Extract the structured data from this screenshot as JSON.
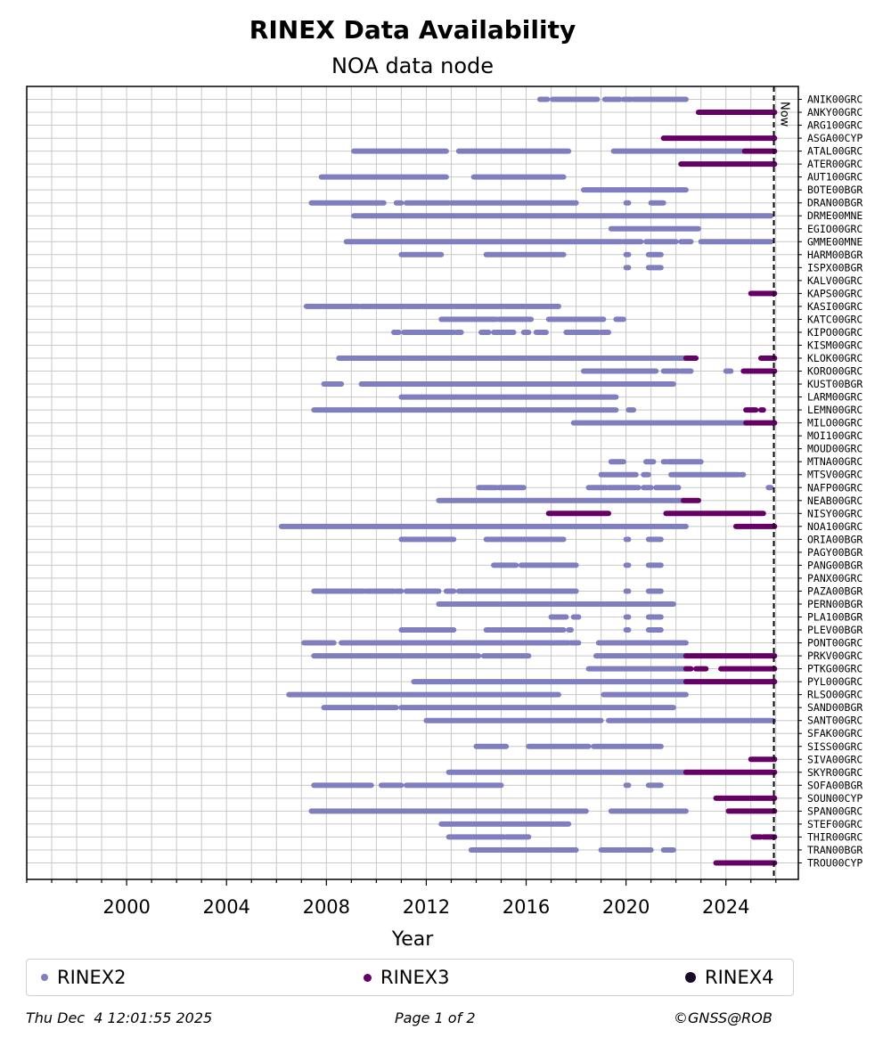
{
  "chart_data": {
    "type": "timeline",
    "title": "RINEX Data Availability",
    "subtitle": "NOA data node",
    "xlabel": "Year",
    "xlim": [
      1996.0,
      2026.9
    ],
    "xticks": [
      "2000",
      "2004",
      "2008",
      "2012",
      "2016",
      "2020",
      "2024"
    ],
    "now_label": "Now",
    "now_year": 2025.92,
    "legend": [
      {
        "key": "r2",
        "label": "RINEX2",
        "color": "#7f7fbf"
      },
      {
        "key": "r3",
        "label": "RINEX3",
        "color": "#660066"
      },
      {
        "key": "r4",
        "label": "RINEX4",
        "color": "#1a0a2a"
      }
    ],
    "stations": [
      {
        "name": "ANIK00GRC",
        "spans": [
          [
            2016.55,
            2016.85,
            "r2"
          ],
          [
            2017.05,
            2018.85,
            "r2"
          ],
          [
            2019.15,
            2019.75,
            "r2"
          ],
          [
            2019.9,
            2020.2,
            "r2"
          ],
          [
            2020.3,
            2022.4,
            "r2"
          ]
        ]
      },
      {
        "name": "ANKY00GRC",
        "spans": [
          [
            2022.9,
            2025.95,
            "r3"
          ]
        ]
      },
      {
        "name": "ARG100GRC",
        "spans": []
      },
      {
        "name": "ASGA00CYP",
        "spans": [
          [
            2021.5,
            2025.95,
            "r3"
          ]
        ]
      },
      {
        "name": "ATAL00GRC",
        "spans": [
          [
            2009.1,
            2012.8,
            "r2"
          ],
          [
            2013.3,
            2017.7,
            "r2"
          ],
          [
            2019.5,
            2024.75,
            "r2"
          ],
          [
            2024.75,
            2025.95,
            "r3"
          ]
        ]
      },
      {
        "name": "ATER00GRC",
        "spans": [
          [
            2022.2,
            2025.95,
            "r3"
          ]
        ]
      },
      {
        "name": "AUT100GRC",
        "spans": [
          [
            2007.8,
            2012.8,
            "r2"
          ],
          [
            2013.9,
            2017.5,
            "r2"
          ]
        ]
      },
      {
        "name": "BOTE00BGR",
        "spans": [
          [
            2018.3,
            2021.9,
            "r2"
          ],
          [
            2022.0,
            2022.4,
            "r2"
          ]
        ]
      },
      {
        "name": "DRAN00BGR",
        "spans": [
          [
            2007.4,
            2010.3,
            "r2"
          ],
          [
            2010.8,
            2011.0,
            "r2"
          ],
          [
            2011.2,
            2012.9,
            "r2"
          ],
          [
            2013.0,
            2018.0,
            "r2"
          ],
          [
            2020.0,
            2020.1,
            "r2"
          ],
          [
            2021.0,
            2021.5,
            "r2"
          ]
        ]
      },
      {
        "name": "DRME00MNE",
        "spans": [
          [
            2009.1,
            2025.8,
            "r2"
          ]
        ]
      },
      {
        "name": "EGIO00GRC",
        "spans": [
          [
            2019.4,
            2022.9,
            "r2"
          ]
        ]
      },
      {
        "name": "GMME00MNE",
        "spans": [
          [
            2008.8,
            2019.8,
            "r2"
          ],
          [
            2019.9,
            2020.6,
            "r2"
          ],
          [
            2020.8,
            2022.0,
            "r2"
          ],
          [
            2022.2,
            2022.6,
            "r2"
          ],
          [
            2023.0,
            2025.8,
            "r2"
          ]
        ]
      },
      {
        "name": "HARM00BGR",
        "spans": [
          [
            2011.0,
            2012.6,
            "r2"
          ],
          [
            2014.4,
            2017.5,
            "r2"
          ],
          [
            2020.0,
            2020.1,
            "r2"
          ],
          [
            2020.9,
            2021.4,
            "r2"
          ]
        ]
      },
      {
        "name": "ISPX00BGR",
        "spans": [
          [
            2020.0,
            2020.1,
            "r2"
          ],
          [
            2020.9,
            2021.4,
            "r2"
          ]
        ]
      },
      {
        "name": "KALV00GRC",
        "spans": []
      },
      {
        "name": "KAPS00GRC",
        "spans": [
          [
            2025.0,
            2025.95,
            "r3"
          ]
        ]
      },
      {
        "name": "KASI00GRC",
        "spans": [
          [
            2007.2,
            2009.3,
            "r2"
          ],
          [
            2009.4,
            2017.3,
            "r2"
          ]
        ]
      },
      {
        "name": "KATC00GRC",
        "spans": [
          [
            2012.6,
            2014.8,
            "r2"
          ],
          [
            2014.9,
            2016.2,
            "r2"
          ],
          [
            2016.9,
            2019.1,
            "r2"
          ],
          [
            2019.6,
            2019.9,
            "r2"
          ]
        ]
      },
      {
        "name": "KIPO00GRC",
        "spans": [
          [
            2010.7,
            2010.9,
            "r2"
          ],
          [
            2011.1,
            2013.1,
            "r2"
          ],
          [
            2013.2,
            2013.4,
            "r2"
          ],
          [
            2014.2,
            2014.5,
            "r2"
          ],
          [
            2014.7,
            2015.5,
            "r2"
          ],
          [
            2015.9,
            2016.1,
            "r2"
          ],
          [
            2016.4,
            2016.8,
            "r2"
          ],
          [
            2017.6,
            2018.9,
            "r2"
          ],
          [
            2019.0,
            2019.3,
            "r2"
          ]
        ]
      },
      {
        "name": "KISM00GRC",
        "spans": []
      },
      {
        "name": "KLOK00GRC",
        "spans": [
          [
            2008.5,
            2022.4,
            "r2"
          ],
          [
            2022.4,
            2022.8,
            "r3"
          ],
          [
            2025.4,
            2025.95,
            "r3"
          ]
        ]
      },
      {
        "name": "KORO00GRC",
        "spans": [
          [
            2018.3,
            2021.2,
            "r2"
          ],
          [
            2021.5,
            2022.1,
            "r2"
          ],
          [
            2022.2,
            2022.6,
            "r2"
          ],
          [
            2024.0,
            2024.2,
            "r2"
          ],
          [
            2024.7,
            2025.95,
            "r3"
          ]
        ]
      },
      {
        "name": "KUST00BGR",
        "spans": [
          [
            2007.9,
            2008.6,
            "r2"
          ],
          [
            2009.4,
            2011.0,
            "r2"
          ],
          [
            2011.0,
            2021.9,
            "r2"
          ]
        ]
      },
      {
        "name": "LARM00GRC",
        "spans": [
          [
            2011.0,
            2019.6,
            "r2"
          ]
        ]
      },
      {
        "name": "LEMN00GRC",
        "spans": [
          [
            2007.5,
            2009.8,
            "r2"
          ],
          [
            2009.8,
            2019.6,
            "r2"
          ],
          [
            2020.1,
            2020.3,
            "r2"
          ],
          [
            2024.8,
            2025.2,
            "r3"
          ],
          [
            2025.4,
            2025.5,
            "r3"
          ]
        ]
      },
      {
        "name": "MILO00GRC",
        "spans": [
          [
            2017.9,
            2024.8,
            "r2"
          ],
          [
            2024.8,
            2025.95,
            "r3"
          ]
        ]
      },
      {
        "name": "MOI100GRC",
        "spans": []
      },
      {
        "name": "MOUD00GRC",
        "spans": []
      },
      {
        "name": "MTNA00GRC",
        "spans": [
          [
            2019.4,
            2019.9,
            "r2"
          ],
          [
            2020.8,
            2021.1,
            "r2"
          ],
          [
            2021.5,
            2021.6,
            "r2"
          ],
          [
            2021.7,
            2023.0,
            "r2"
          ]
        ]
      },
      {
        "name": "MTSV00GRC",
        "spans": [
          [
            2019.0,
            2020.4,
            "r2"
          ],
          [
            2020.7,
            2020.9,
            "r2"
          ],
          [
            2021.8,
            2024.5,
            "r2"
          ],
          [
            2024.6,
            2024.7,
            "r2"
          ]
        ]
      },
      {
        "name": "NAFP00GRC",
        "spans": [
          [
            2014.1,
            2014.8,
            "r2"
          ],
          [
            2014.9,
            2015.9,
            "r2"
          ],
          [
            2018.5,
            2019.2,
            "r2"
          ],
          [
            2019.3,
            2020.5,
            "r2"
          ],
          [
            2020.7,
            2021.0,
            "r2"
          ],
          [
            2021.2,
            2022.1,
            "r2"
          ],
          [
            2025.7,
            2025.8,
            "r2"
          ]
        ]
      },
      {
        "name": "NEAB00GRC",
        "spans": [
          [
            2012.5,
            2022.3,
            "r2"
          ],
          [
            2022.3,
            2022.9,
            "r3"
          ]
        ]
      },
      {
        "name": "NISY00GRC",
        "spans": [
          [
            2016.9,
            2019.3,
            "r3"
          ],
          [
            2021.6,
            2025.5,
            "r3"
          ]
        ]
      },
      {
        "name": "NOA100GRC",
        "spans": [
          [
            2006.2,
            2022.4,
            "r2"
          ],
          [
            2024.4,
            2025.95,
            "r3"
          ]
        ]
      },
      {
        "name": "ORIA00BGR",
        "spans": [
          [
            2011.0,
            2013.1,
            "r2"
          ],
          [
            2014.4,
            2017.5,
            "r2"
          ],
          [
            2020.0,
            2020.1,
            "r2"
          ],
          [
            2020.9,
            2021.4,
            "r2"
          ]
        ]
      },
      {
        "name": "PAGY00BGR",
        "spans": []
      },
      {
        "name": "PANG00BGR",
        "spans": [
          [
            2014.7,
            2015.6,
            "r2"
          ],
          [
            2015.8,
            2018.0,
            "r2"
          ],
          [
            2020.0,
            2020.1,
            "r2"
          ],
          [
            2020.9,
            2021.4,
            "r2"
          ]
        ]
      },
      {
        "name": "PANX00GRC",
        "spans": []
      },
      {
        "name": "PAZA00BGR",
        "spans": [
          [
            2007.5,
            2009.5,
            "r2"
          ],
          [
            2009.6,
            2010.7,
            "r2"
          ],
          [
            2010.8,
            2011.0,
            "r2"
          ],
          [
            2011.2,
            2012.5,
            "r2"
          ],
          [
            2012.8,
            2013.1,
            "r2"
          ],
          [
            2013.3,
            2018.0,
            "r2"
          ],
          [
            2020.0,
            2020.1,
            "r2"
          ],
          [
            2020.9,
            2021.4,
            "r2"
          ]
        ]
      },
      {
        "name": "PERN00BGR",
        "spans": [
          [
            2012.5,
            2021.9,
            "r2"
          ]
        ]
      },
      {
        "name": "PLA100BGR",
        "spans": [
          [
            2017.0,
            2017.6,
            "r2"
          ],
          [
            2017.9,
            2018.1,
            "r2"
          ],
          [
            2020.0,
            2020.1,
            "r2"
          ],
          [
            2020.9,
            2021.4,
            "r2"
          ]
        ]
      },
      {
        "name": "PLEV00BGR",
        "spans": [
          [
            2011.0,
            2013.1,
            "r2"
          ],
          [
            2014.4,
            2017.5,
            "r2"
          ],
          [
            2017.7,
            2017.8,
            "r2"
          ],
          [
            2020.0,
            2020.1,
            "r2"
          ],
          [
            2020.9,
            2021.4,
            "r2"
          ]
        ]
      },
      {
        "name": "PONT00GRC",
        "spans": [
          [
            2007.1,
            2008.3,
            "r2"
          ],
          [
            2008.6,
            2017.7,
            "r2"
          ],
          [
            2017.8,
            2018.1,
            "r2"
          ],
          [
            2018.9,
            2022.4,
            "r2"
          ]
        ]
      },
      {
        "name": "PRKV00GRC",
        "spans": [
          [
            2007.5,
            2009.8,
            "r2"
          ],
          [
            2009.8,
            2014.1,
            "r2"
          ],
          [
            2014.3,
            2016.1,
            "r2"
          ],
          [
            2018.8,
            2022.4,
            "r2"
          ],
          [
            2022.4,
            2025.95,
            "r3"
          ]
        ]
      },
      {
        "name": "PTKG00GRC",
        "spans": [
          [
            2018.5,
            2022.4,
            "r2"
          ],
          [
            2022.4,
            2022.6,
            "r3"
          ],
          [
            2022.8,
            2023.2,
            "r3"
          ],
          [
            2023.8,
            2025.95,
            "r3"
          ]
        ]
      },
      {
        "name": "PYL000GRC",
        "spans": [
          [
            2011.5,
            2022.4,
            "r2"
          ],
          [
            2022.4,
            2025.95,
            "r3"
          ]
        ]
      },
      {
        "name": "RLSO00GRC",
        "spans": [
          [
            2006.5,
            2017.3,
            "r2"
          ],
          [
            2019.1,
            2022.4,
            "r2"
          ]
        ]
      },
      {
        "name": "SAND00BGR",
        "spans": [
          [
            2007.9,
            2009.9,
            "r2"
          ],
          [
            2010.0,
            2010.8,
            "r2"
          ],
          [
            2011.0,
            2021.9,
            "r2"
          ]
        ]
      },
      {
        "name": "SANT00GRC",
        "spans": [
          [
            2012.0,
            2019.0,
            "r2"
          ],
          [
            2019.3,
            2025.9,
            "r2"
          ]
        ]
      },
      {
        "name": "SFAK00GRC",
        "spans": []
      },
      {
        "name": "SISS00GRC",
        "spans": [
          [
            2014.0,
            2015.2,
            "r2"
          ],
          [
            2016.1,
            2018.5,
            "r2"
          ],
          [
            2018.7,
            2021.4,
            "r2"
          ]
        ]
      },
      {
        "name": "SIVA00GRC",
        "spans": [
          [
            2025.0,
            2025.95,
            "r3"
          ]
        ]
      },
      {
        "name": "SKYR00GRC",
        "spans": [
          [
            2012.9,
            2022.4,
            "r2"
          ],
          [
            2022.4,
            2025.95,
            "r3"
          ]
        ]
      },
      {
        "name": "SOFA00BGR",
        "spans": [
          [
            2007.5,
            2009.8,
            "r2"
          ],
          [
            2010.2,
            2011.0,
            "r2"
          ],
          [
            2011.2,
            2015.0,
            "r2"
          ],
          [
            2020.0,
            2020.1,
            "r2"
          ],
          [
            2020.9,
            2021.4,
            "r2"
          ]
        ]
      },
      {
        "name": "SOUN00CYP",
        "spans": [
          [
            2023.6,
            2025.95,
            "r3"
          ]
        ]
      },
      {
        "name": "SPAN00GRC",
        "spans": [
          [
            2007.4,
            2018.4,
            "r2"
          ],
          [
            2019.4,
            2022.4,
            "r2"
          ],
          [
            2024.1,
            2025.95,
            "r3"
          ]
        ]
      },
      {
        "name": "STEF00GRC",
        "spans": [
          [
            2012.6,
            2017.7,
            "r2"
          ]
        ]
      },
      {
        "name": "THIR00GRC",
        "spans": [
          [
            2012.9,
            2015.1,
            "r2"
          ],
          [
            2015.2,
            2016.1,
            "r2"
          ],
          [
            2025.1,
            2025.4,
            "r3"
          ],
          [
            2025.5,
            2025.95,
            "r3"
          ]
        ]
      },
      {
        "name": "TRAN00BGR",
        "spans": [
          [
            2013.8,
            2018.0,
            "r2"
          ],
          [
            2019.0,
            2021.0,
            "r2"
          ],
          [
            2021.5,
            2021.9,
            "r2"
          ]
        ]
      },
      {
        "name": "TROU00CYP",
        "spans": [
          [
            2023.6,
            2025.95,
            "r3"
          ]
        ]
      }
    ]
  },
  "footer": {
    "timestamp": "Thu Dec  4 12:01:55 2025",
    "page": "Page 1 of 2",
    "credit": "©GNSS@ROB"
  }
}
